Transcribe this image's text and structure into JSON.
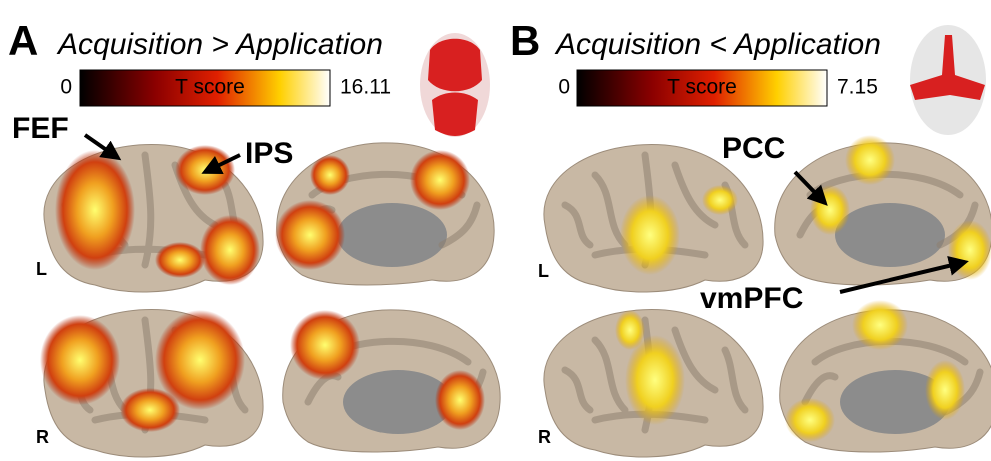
{
  "panels": [
    {
      "label": "A",
      "title": "Acquisition > Application",
      "colorbar": {
        "min": 0,
        "max": 16.11,
        "label": "T score"
      },
      "annotations": [
        "FEF",
        "IPS"
      ],
      "hemispheres": [
        "L",
        "R"
      ]
    },
    {
      "label": "B",
      "title": "Acquisition < Application",
      "colorbar": {
        "min": 0,
        "max": 7.15,
        "label": "T score"
      },
      "annotations": [
        "PCC",
        "vmPFC"
      ],
      "hemispheres": [
        "L",
        "R"
      ]
    }
  ]
}
